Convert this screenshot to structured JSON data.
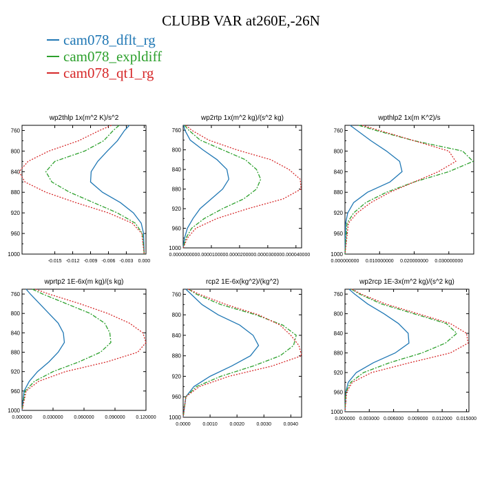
{
  "title": "CLUBB VAR at260E,-26N",
  "legend": [
    {
      "name": "cam078_dflt_rg",
      "color": "#1f77b4"
    },
    {
      "name": "cam078_expldiff",
      "color": "#2ca02c"
    },
    {
      "name": "cam078_qt1_rg",
      "color": "#d62728"
    }
  ],
  "y_axis": {
    "range": [
      1000,
      750
    ],
    "ticks": [
      "760",
      "800",
      "840",
      "880",
      "920",
      "960",
      "1000"
    ]
  },
  "chart_data": [
    {
      "type": "line",
      "title": "wp2thlp   1x(m^2 K)/s^2",
      "xlim": [
        -0.0205,
        0.0003
      ],
      "xticks": [
        "-0.015",
        "-0.012",
        "-0.009",
        "-0.006",
        "-0.003",
        "0.000"
      ],
      "xtick_values": [
        -0.015,
        -0.012,
        -0.009,
        -0.006,
        -0.003,
        0.0
      ],
      "series": [
        {
          "name": "cam078_dflt_rg",
          "color": "#1f77b4",
          "x": [
            -0.0025,
            -0.0033,
            -0.0045,
            -0.0062,
            -0.0078,
            -0.0089,
            -0.009,
            -0.007,
            -0.004,
            -0.0018,
            -0.0005,
            -0.0001,
            0.0
          ],
          "y": [
            750,
            760,
            780,
            800,
            820,
            840,
            860,
            880,
            900,
            920,
            940,
            960,
            1000
          ]
        },
        {
          "name": "cam078_expldiff",
          "color": "#2ca02c",
          "x": [
            -0.0042,
            -0.0052,
            -0.0068,
            -0.01,
            -0.015,
            -0.0165,
            -0.0155,
            -0.0125,
            -0.0085,
            -0.0045,
            -0.0015,
            -0.0003,
            0.0
          ],
          "y": [
            750,
            760,
            780,
            800,
            820,
            840,
            860,
            880,
            900,
            920,
            940,
            960,
            1000
          ]
        },
        {
          "name": "cam078_qt1_rg",
          "color": "#d62728",
          "x": [
            -0.0055,
            -0.0075,
            -0.011,
            -0.016,
            -0.0195,
            -0.021,
            -0.02,
            -0.0165,
            -0.0115,
            -0.006,
            -0.002,
            -0.0004,
            0.0
          ],
          "y": [
            750,
            760,
            780,
            800,
            820,
            840,
            860,
            880,
            900,
            920,
            940,
            960,
            1000
          ]
        }
      ]
    },
    {
      "type": "line",
      "title": "wp2rtp   1x(m^2 kg)/(s^2 kg)",
      "xlim": [
        0,
        4.2e-05
      ],
      "xticks": [
        "0.000000000",
        "0.000010000",
        "0.000020000",
        "0.000030000",
        "0.000040000"
      ],
      "xtick_values": [
        0,
        1e-05,
        2e-05,
        3e-05,
        4e-05
      ],
      "series": [
        {
          "name": "cam078_dflt_rg",
          "color": "#1f77b4",
          "x": [
            2e-07,
            6e-07,
            2.5e-06,
            7e-06,
            1.2e-05,
            1.55e-05,
            1.62e-05,
            1.4e-05,
            1e-05,
            6e-06,
            3.5e-06,
            1.5e-06,
            5e-07,
            0.0
          ],
          "y": [
            750,
            760,
            780,
            800,
            820,
            840,
            860,
            880,
            900,
            920,
            940,
            960,
            980,
            1000
          ]
        },
        {
          "name": "cam078_expldiff",
          "color": "#2ca02c",
          "x": [
            5e-07,
            2e-06,
            6e-06,
            1.4e-05,
            2.2e-05,
            2.6e-05,
            2.75e-05,
            2.6e-05,
            2.15e-05,
            1.4e-05,
            7.5e-06,
            3e-06,
            1e-06,
            0.0
          ],
          "y": [
            750,
            760,
            780,
            800,
            820,
            840,
            860,
            880,
            900,
            920,
            940,
            960,
            980,
            1000
          ]
        },
        {
          "name": "cam078_qt1_rg",
          "color": "#d62728",
          "x": [
            1e-06,
            3e-06,
            9e-06,
            1.9e-05,
            3.1e-05,
            3.75e-05,
            4.15e-05,
            4.18e-05,
            3.55e-05,
            2.3e-05,
            1.2e-05,
            4.5e-06,
            1.5e-06,
            0.0
          ],
          "y": [
            750,
            760,
            780,
            800,
            820,
            840,
            860,
            880,
            900,
            920,
            940,
            960,
            980,
            1000
          ]
        }
      ]
    },
    {
      "type": "line",
      "title": "wpthlp2   1x(m K^2)/s",
      "xlim": [
        0,
        0.0372
      ],
      "xticks": [
        "0.000000000",
        "0.010000000",
        "0.020000000",
        "0.030000000"
      ],
      "xtick_values": [
        0,
        0.01,
        0.02,
        0.03
      ],
      "series": [
        {
          "name": "cam078_dflt_rg",
          "color": "#1f77b4",
          "x": [
            0.0015,
            0.0035,
            0.0075,
            0.012,
            0.0158,
            0.0165,
            0.013,
            0.0065,
            0.0025,
            0.0008,
            0.0002,
            0.0
          ],
          "y": [
            750,
            760,
            780,
            800,
            820,
            840,
            860,
            880,
            900,
            920,
            940,
            1000
          ]
        },
        {
          "name": "cam078_expldiff",
          "color": "#2ca02c",
          "x": [
            0.004,
            0.009,
            0.02,
            0.034,
            0.037,
            0.03,
            0.02,
            0.012,
            0.006,
            0.0025,
            0.0006,
            0.0
          ],
          "y": [
            750,
            760,
            780,
            800,
            820,
            840,
            860,
            880,
            900,
            920,
            940,
            1000
          ]
        },
        {
          "name": "cam078_qt1_rg",
          "color": "#d62728",
          "x": [
            0.005,
            0.01,
            0.02,
            0.03,
            0.032,
            0.027,
            0.02,
            0.013,
            0.0075,
            0.0035,
            0.001,
            0.0
          ],
          "y": [
            750,
            760,
            780,
            800,
            820,
            840,
            860,
            880,
            900,
            920,
            940,
            1000
          ]
        }
      ]
    },
    {
      "type": "line",
      "title": "wprtp2   1E-6x(m kg)/(s kg)",
      "xlim": [
        0,
        0.12
      ],
      "xticks": [
        "0.000000",
        "0.030000",
        "0.060000",
        "0.090000",
        "0.120000"
      ],
      "xtick_values": [
        0,
        0.03,
        0.06,
        0.09,
        0.12
      ],
      "series": [
        {
          "name": "cam078_dflt_rg",
          "color": "#1f77b4",
          "x": [
            0.004,
            0.008,
            0.017,
            0.026,
            0.035,
            0.04,
            0.041,
            0.035,
            0.026,
            0.015,
            0.007,
            0.002,
            0.0
          ],
          "y": [
            750,
            760,
            780,
            800,
            820,
            840,
            860,
            880,
            900,
            920,
            940,
            960,
            1000
          ]
        },
        {
          "name": "cam078_expldiff",
          "color": "#2ca02c",
          "x": [
            0.01,
            0.02,
            0.043,
            0.066,
            0.08,
            0.085,
            0.086,
            0.076,
            0.055,
            0.03,
            0.012,
            0.003,
            0.0
          ],
          "y": [
            750,
            760,
            780,
            800,
            820,
            840,
            860,
            880,
            900,
            920,
            940,
            960,
            1000
          ]
        },
        {
          "name": "cam078_qt1_rg",
          "color": "#d62728",
          "x": [
            0.013,
            0.026,
            0.056,
            0.083,
            0.104,
            0.117,
            0.12,
            0.112,
            0.082,
            0.042,
            0.016,
            0.004,
            0.0
          ],
          "y": [
            750,
            760,
            780,
            800,
            820,
            840,
            860,
            880,
            900,
            920,
            940,
            960,
            1000
          ]
        }
      ]
    },
    {
      "type": "line",
      "title": "rcp2   1E-6x(kg^2)/(kg^2)",
      "xlim": [
        0,
        0.0044
      ],
      "xticks": [
        "0.0000",
        "0.0010",
        "0.0020",
        "0.0030",
        "0.0040"
      ],
      "xtick_values": [
        0,
        0.001,
        0.002,
        0.003,
        0.004
      ],
      "series": [
        {
          "name": "cam078_dflt_rg",
          "color": "#1f77b4",
          "x": [
            0.0001,
            0.0003,
            0.0007,
            0.0013,
            0.0021,
            0.0026,
            0.0028,
            0.0025,
            0.0018,
            0.001,
            0.0004,
            0.0001,
            0.0
          ],
          "y": [
            750,
            760,
            780,
            800,
            820,
            840,
            860,
            880,
            900,
            920,
            940,
            960,
            1000
          ]
        },
        {
          "name": "cam078_expldiff",
          "color": "#2ca02c",
          "x": [
            0.0002,
            0.0005,
            0.0014,
            0.0027,
            0.0037,
            0.0042,
            0.0041,
            0.0036,
            0.0026,
            0.0014,
            0.0005,
            0.0001,
            0.0
          ],
          "y": [
            750,
            760,
            780,
            800,
            820,
            840,
            860,
            880,
            900,
            920,
            940,
            960,
            1000
          ]
        },
        {
          "name": "cam078_qt1_rg",
          "color": "#d62728",
          "x": [
            0.0002,
            0.0006,
            0.0016,
            0.0028,
            0.0036,
            0.004,
            0.0043,
            0.0044,
            0.0033,
            0.0017,
            0.0006,
            0.0001,
            0.0
          ],
          "y": [
            750,
            760,
            780,
            800,
            820,
            840,
            860,
            880,
            900,
            920,
            940,
            960,
            1000
          ]
        }
      ]
    },
    {
      "type": "line",
      "title": "wp2rcp   1E-3x(m^2 kg)/(s^2 kg)",
      "xlim": [
        0,
        0.0153
      ],
      "xticks": [
        "0.000000",
        "0.003000",
        "0.006000",
        "0.009000",
        "0.012000",
        "0.015000"
      ],
      "xtick_values": [
        0,
        0.003,
        0.006,
        0.009,
        0.012,
        0.015
      ],
      "series": [
        {
          "name": "cam078_dflt_rg",
          "color": "#1f77b4",
          "x": [
            0.0005,
            0.0012,
            0.0028,
            0.0048,
            0.0066,
            0.0078,
            0.0079,
            0.0062,
            0.0035,
            0.0014,
            0.0004,
            0.0001,
            0.0
          ],
          "y": [
            750,
            760,
            780,
            800,
            820,
            840,
            860,
            880,
            900,
            920,
            940,
            960,
            1000
          ]
        },
        {
          "name": "cam078_expldiff",
          "color": "#2ca02c",
          "x": [
            0.0008,
            0.0018,
            0.0045,
            0.0085,
            0.0125,
            0.0138,
            0.0124,
            0.0095,
            0.0055,
            0.0023,
            0.0007,
            0.0001,
            0.0
          ],
          "y": [
            750,
            760,
            780,
            800,
            820,
            840,
            860,
            880,
            900,
            920,
            940,
            960,
            1000
          ]
        },
        {
          "name": "cam078_qt1_rg",
          "color": "#d62728",
          "x": [
            0.0009,
            0.002,
            0.005,
            0.009,
            0.013,
            0.015,
            0.0152,
            0.013,
            0.008,
            0.0033,
            0.0009,
            0.0002,
            0.0
          ],
          "y": [
            750,
            760,
            780,
            800,
            820,
            840,
            860,
            880,
            900,
            920,
            940,
            960,
            1000
          ]
        }
      ]
    }
  ]
}
